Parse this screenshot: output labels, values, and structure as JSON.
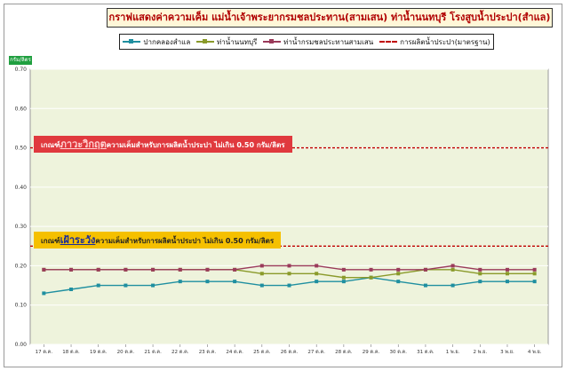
{
  "title": "กราฟแสดงค่าความเค็ม แม่น้ำเจ้าพระยากรมชลประทาน(สามเสน) ท่าน้ำนนทบุรี โรงสูบน้ำประปา(สำแล)",
  "unit_label": "กรัม/ลิตร",
  "banners": {
    "critical": {
      "prefix": "เกณฑ์",
      "emphasis": "ภาวะวิกฤต",
      "text": "ความเค็มสำหรับการผลิตน้ำประปา ไม่เกิน 0.50 กรัม/ลิตร"
    },
    "warning": {
      "prefix": "เกณฑ์",
      "emphasis": "เฝ้าระวัง",
      "text": "ความเค็มสำหรับการผลิตน้ำประปา ไม่เกิน 0.50 กรัม/ลิตร"
    }
  },
  "chart_data": {
    "type": "line",
    "title": "กราฟแสดงค่าความเค็ม แม่น้ำเจ้าพระยากรมชลประทาน(สามเสน) ท่าน้ำนนทบุรี โรงสูบน้ำประปา(สำแล)",
    "ylabel": "กรัม/ลิตร",
    "ylim": [
      0.0,
      0.7
    ],
    "yticks": [
      "0.00",
      "0.10",
      "0.20",
      "0.30",
      "0.40",
      "0.50",
      "0.60",
      "0.70"
    ],
    "grid": true,
    "legend_position": "top",
    "categories": [
      "17 ต.ค.",
      "18 ต.ค.",
      "19 ต.ค.",
      "20 ต.ค.",
      "21 ต.ค.",
      "22 ต.ค.",
      "23 ต.ค.",
      "24 ต.ค.",
      "25 ต.ค.",
      "26 ต.ค.",
      "27 ต.ค.",
      "28 ต.ค.",
      "29 ต.ค.",
      "30 ต.ค.",
      "31 ต.ค.",
      "1 พ.ย.",
      "2 พ.ย.",
      "3 พ.ย.",
      "4 พ.ย."
    ],
    "series": [
      {
        "name": "ปากคลองสำแล",
        "color": "#1f8fa0",
        "marker": "square",
        "values": [
          0.13,
          0.14,
          0.15,
          0.15,
          0.15,
          0.16,
          0.16,
          0.16,
          0.15,
          0.15,
          0.16,
          0.16,
          0.17,
          0.16,
          0.15,
          0.15,
          0.16,
          0.16,
          0.16
        ]
      },
      {
        "name": "ท่าน้ำนนทบุรี",
        "color": "#8a9a2a",
        "marker": "square",
        "values": [
          0.19,
          0.19,
          0.19,
          0.19,
          0.19,
          0.19,
          0.19,
          0.19,
          0.18,
          0.18,
          0.18,
          0.17,
          0.17,
          0.18,
          0.19,
          0.19,
          0.18,
          0.18,
          0.18
        ]
      },
      {
        "name": "ท่าน้ำกรมชลประทานสามเสน",
        "color": "#9a3a5a",
        "marker": "square",
        "values": [
          0.19,
          0.19,
          0.19,
          0.19,
          0.19,
          0.19,
          0.19,
          0.19,
          0.2,
          0.2,
          0.2,
          0.19,
          0.19,
          0.19,
          0.19,
          0.2,
          0.19,
          0.19,
          0.19
        ]
      },
      {
        "name": "การผลิตน้ำประปา(มาตรฐาน)",
        "color": "#c00000",
        "dashed": true,
        "values": [
          0.5,
          0.5,
          0.5,
          0.5,
          0.5,
          0.5,
          0.5,
          0.5,
          0.5,
          0.5,
          0.5,
          0.5,
          0.5,
          0.5,
          0.5,
          0.5,
          0.5,
          0.5,
          0.5
        ]
      }
    ],
    "reference_lines": [
      {
        "value": 0.5,
        "color": "#c00000"
      },
      {
        "value": 0.25,
        "color": "#c00000"
      }
    ]
  }
}
